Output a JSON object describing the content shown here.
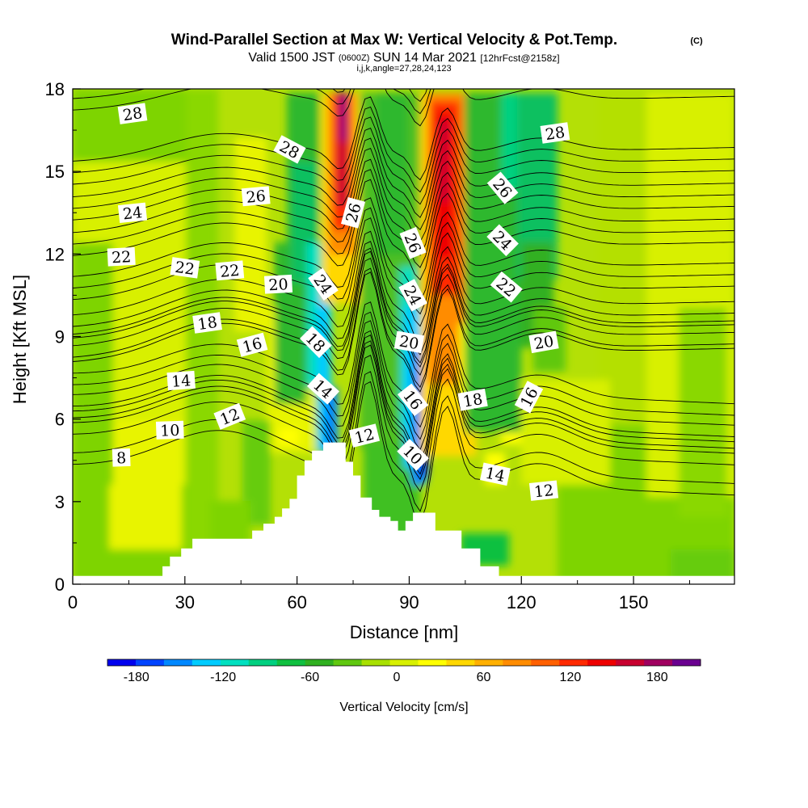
{
  "chart_data": {
    "type": "heatmap",
    "title": "Wind-Parallel Section at Max W: Vertical Velocity & Pot.Temp.",
    "title_mark": "(C)",
    "subtitle": {
      "valid_a": "Valid 1500 JST",
      "valid_z": "(0600Z)",
      "valid_b": "SUN 14 Mar 2021",
      "fcst": "[12hrFcst@2158z]"
    },
    "params": "i,j,k,angle=27,28,24,123",
    "xlabel": "Distance [nm]",
    "ylabel": "Height [Kft MSL]",
    "xlim": [
      0,
      177
    ],
    "ylim": [
      0,
      18
    ],
    "x_ticks": [
      "0",
      "30",
      "60",
      "90",
      "120",
      "150"
    ],
    "y_ticks": [
      "0",
      "3",
      "6",
      "9",
      "12",
      "15",
      "18"
    ],
    "colorbar": {
      "label": "Vertical Velocity [cm/s]",
      "ticks": [
        "-180",
        "-120",
        "-60",
        "0",
        "60",
        "120",
        "180"
      ],
      "range": [
        -200,
        210
      ],
      "colors": [
        "#0000ee",
        "#0044ff",
        "#0088ff",
        "#00ccff",
        "#00e0c0",
        "#00d080",
        "#10c040",
        "#30b020",
        "#60c810",
        "#a8e000",
        "#d8f000",
        "#ffff00",
        "#ffd800",
        "#ffb000",
        "#ff8c00",
        "#ff6000",
        "#ff2a00",
        "#ee0000",
        "#c80030",
        "#a00060",
        "#6a0090"
      ]
    },
    "terrain": [
      [
        0,
        0.3
      ],
      [
        22,
        0.3
      ],
      [
        24,
        0.65
      ],
      [
        26,
        1.0
      ],
      [
        29,
        1.3
      ],
      [
        32,
        1.65
      ],
      [
        45,
        1.65
      ],
      [
        48,
        1.95
      ],
      [
        51,
        2.2
      ],
      [
        54,
        2.45
      ],
      [
        56,
        2.75
      ],
      [
        58,
        3.1
      ],
      [
        60,
        3.95
      ],
      [
        62,
        4.5
      ],
      [
        64,
        4.85
      ],
      [
        67,
        5.15
      ],
      [
        71,
        5.15
      ],
      [
        73,
        4.45
      ],
      [
        75,
        3.95
      ],
      [
        77,
        3.15
      ],
      [
        80,
        2.7
      ],
      [
        82,
        2.45
      ],
      [
        85,
        2.3
      ],
      [
        87,
        1.95
      ],
      [
        89,
        2.3
      ],
      [
        91,
        2.6
      ],
      [
        96,
        2.6
      ],
      [
        97,
        1.95
      ],
      [
        101,
        1.95
      ],
      [
        104,
        1.3
      ],
      [
        109,
        0.65
      ],
      [
        114,
        0.3
      ],
      [
        177,
        0.3
      ]
    ],
    "isentropes": [
      {
        "value": "8",
        "base": 4.3
      },
      {
        "value": "10",
        "base": 5.4
      },
      {
        "value": "12",
        "base": 6.0
      },
      {
        "value": "14",
        "base": 7.2
      },
      {
        "value": "16",
        "base": 8.2
      },
      {
        "value": "18",
        "base": 8.9
      },
      {
        "value": "20",
        "base": 10.3
      },
      {
        "value": "22",
        "base": 11.9
      },
      {
        "value": "24",
        "base": 13.2
      },
      {
        "value": "26",
        "base": 14.5
      },
      {
        "value": "28",
        "base": 17.2
      }
    ],
    "contour_labels": [
      {
        "text": "28",
        "x": 16,
        "y": 17.1,
        "angle": -8
      },
      {
        "text": "28",
        "x": 58,
        "y": 15.8,
        "angle": 28
      },
      {
        "text": "28",
        "x": 129,
        "y": 16.4,
        "angle": -8
      },
      {
        "text": "26",
        "x": 49,
        "y": 14.1,
        "angle": -5
      },
      {
        "text": "26",
        "x": 75,
        "y": 13.5,
        "angle": -75
      },
      {
        "text": "26",
        "x": 91,
        "y": 12.4,
        "angle": 68
      },
      {
        "text": "26",
        "x": 115,
        "y": 14.4,
        "angle": 50
      },
      {
        "text": "24",
        "x": 16,
        "y": 13.5,
        "angle": -6
      },
      {
        "text": "24",
        "x": 67,
        "y": 10.9,
        "angle": 55
      },
      {
        "text": "24",
        "x": 91,
        "y": 10.5,
        "angle": 62
      },
      {
        "text": "24",
        "x": 115,
        "y": 12.5,
        "angle": 45
      },
      {
        "text": "22",
        "x": 13,
        "y": 11.9,
        "angle": -3
      },
      {
        "text": "22",
        "x": 30,
        "y": 11.5,
        "angle": 8
      },
      {
        "text": "22",
        "x": 42,
        "y": 11.4,
        "angle": -5
      },
      {
        "text": "22",
        "x": 116,
        "y": 10.8,
        "angle": 40
      },
      {
        "text": "20",
        "x": 55,
        "y": 10.9,
        "angle": -3
      },
      {
        "text": "20",
        "x": 90,
        "y": 8.8,
        "angle": 10
      },
      {
        "text": "20",
        "x": 126,
        "y": 8.8,
        "angle": -10
      },
      {
        "text": "18",
        "x": 36,
        "y": 9.5,
        "angle": -8
      },
      {
        "text": "18",
        "x": 65,
        "y": 8.8,
        "angle": 45
      },
      {
        "text": "18",
        "x": 107,
        "y": 6.7,
        "angle": -10
      },
      {
        "text": "16",
        "x": 48,
        "y": 8.7,
        "angle": -15
      },
      {
        "text": "16",
        "x": 91,
        "y": 6.7,
        "angle": 52
      },
      {
        "text": "16",
        "x": 122,
        "y": 6.8,
        "angle": -62
      },
      {
        "text": "14",
        "x": 29,
        "y": 7.4,
        "angle": -4
      },
      {
        "text": "14",
        "x": 67,
        "y": 7.1,
        "angle": 42
      },
      {
        "text": "14",
        "x": 113,
        "y": 4.0,
        "angle": 12
      },
      {
        "text": "12",
        "x": 42,
        "y": 6.1,
        "angle": -22
      },
      {
        "text": "12",
        "x": 78,
        "y": 5.4,
        "angle": -14
      },
      {
        "text": "12",
        "x": 126,
        "y": 3.4,
        "angle": -6
      },
      {
        "text": "10",
        "x": 26,
        "y": 5.6,
        "angle": -2
      },
      {
        "text": "10",
        "x": 91,
        "y": 4.7,
        "angle": 45
      },
      {
        "text": "8",
        "x": 13,
        "y": 4.6,
        "angle": -2
      }
    ]
  }
}
